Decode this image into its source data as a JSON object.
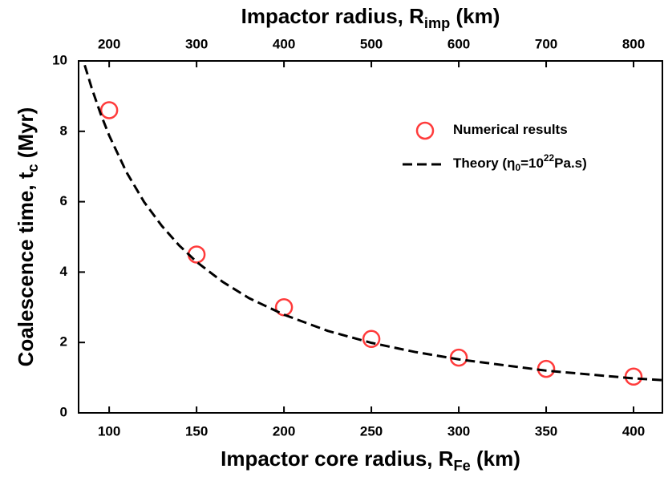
{
  "chart_data": {
    "type": "scatter",
    "xlabel": [
      {
        "text": "Impactor core radius, R",
        "shift": "none"
      },
      {
        "text": "Fe",
        "shift": "sub"
      },
      {
        "text": " (km)",
        "shift": "none"
      }
    ],
    "x2label": [
      {
        "text": "Impactor radius, R",
        "shift": "none"
      },
      {
        "text": "imp",
        "shift": "sub"
      },
      {
        "text": " (km)",
        "shift": "none"
      }
    ],
    "ylabel": [
      {
        "text": "Coalescence time, t",
        "shift": "none"
      },
      {
        "text": "c",
        "shift": "sub"
      },
      {
        "text": " (Myr)",
        "shift": "none"
      }
    ],
    "xlim": [
      82.5,
      416.5
    ],
    "xticks": [
      100,
      150,
      200,
      250,
      300,
      350,
      400
    ],
    "x2lim": [
      165,
      833
    ],
    "x2ticks": [
      200,
      300,
      400,
      500,
      600,
      700,
      800
    ],
    "ylim": [
      0,
      10
    ],
    "yticks": [
      0,
      2,
      4,
      6,
      8,
      10
    ],
    "series": [
      {
        "name": [
          {
            "text": "Numerical results",
            "shift": "none"
          }
        ],
        "color": "#ff3b3b",
        "style": "circle",
        "x": [
          100,
          150,
          200,
          250,
          300,
          350,
          400
        ],
        "values": [
          8.6,
          4.5,
          3.0,
          2.1,
          1.57,
          1.25,
          1.03
        ]
      },
      {
        "name": [
          {
            "text": "Theory (η",
            "shift": "none"
          },
          {
            "text": "0",
            "shift": "sub"
          },
          {
            "text": "=10",
            "shift": "none"
          },
          {
            "text": "22",
            "shift": "sup"
          },
          {
            "text": "Pa.s)",
            "shift": "none"
          }
        ],
        "color": "#000000",
        "style": "dashed",
        "x": [
          86,
          90,
          95,
          100,
          110,
          120,
          130,
          140,
          150,
          165,
          180,
          200,
          225,
          250,
          275,
          300,
          350,
          400,
          416
        ],
        "values": [
          9.88,
          9.23,
          8.51,
          7.88,
          6.83,
          5.99,
          5.32,
          4.76,
          4.29,
          3.72,
          3.26,
          2.79,
          2.33,
          1.99,
          1.73,
          1.52,
          1.2,
          0.98,
          0.93
        ]
      }
    ]
  }
}
